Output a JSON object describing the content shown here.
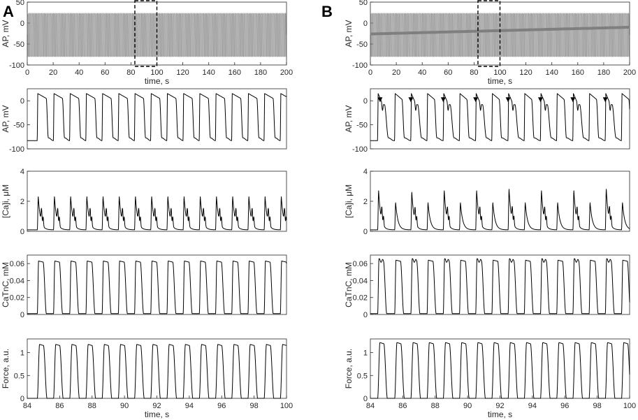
{
  "figure": {
    "panel_letters": [
      "A",
      "B"
    ]
  },
  "colors": {
    "axes": "#262626",
    "trace": "#000000",
    "overview_trace": "#7f7f7f",
    "background": "#ffffff"
  },
  "chart_data": [
    {
      "panel": "A",
      "row": "overview",
      "type": "line",
      "xlabel": "time, s",
      "ylabel": "AP, mV",
      "xlim": [
        0,
        200
      ],
      "ylim": [
        -100,
        50
      ],
      "xticks": [
        0,
        20,
        40,
        60,
        80,
        100,
        120,
        140,
        160,
        180,
        200
      ],
      "yticks": [
        -100,
        -50,
        0,
        50
      ],
      "series": [
        {
          "period_s": 1.0,
          "peak_mV": 24,
          "rest_mV": -80,
          "upstroke_start_mV": -28
        }
      ],
      "highlight_box": {
        "x": [
          83,
          100
        ],
        "y": [
          -100,
          50
        ]
      }
    },
    {
      "panel": "B",
      "row": "overview",
      "type": "line",
      "xlabel": "time, s",
      "ylabel": "AP, mV",
      "xlim": [
        0,
        200
      ],
      "ylim": [
        -100,
        50
      ],
      "xticks": [
        0,
        20,
        40,
        60,
        80,
        100,
        120,
        140,
        160,
        180,
        200
      ],
      "yticks": [
        -100,
        -50,
        0,
        50
      ],
      "series": [
        {
          "period_s": 1.0,
          "peak_mV": 24,
          "rest_mV": -80,
          "upstroke_start_mV": -28,
          "band_start_mV": -26,
          "band_end_mV": -10
        }
      ],
      "highlight_box": {
        "x": [
          83,
          100
        ],
        "y": [
          -100,
          50
        ]
      }
    },
    {
      "panel": "A",
      "row": "ap",
      "type": "line",
      "xlabel": "",
      "ylabel": "AP, mV",
      "xlim": [
        84,
        100
      ],
      "ylim": [
        -100,
        25
      ],
      "yticks": [
        -100,
        -50,
        0
      ],
      "series": [
        {
          "beat_starts": [
            84.62,
            85.62,
            86.62,
            87.62,
            88.62,
            89.62,
            90.62,
            91.62,
            92.62,
            93.62,
            94.62,
            95.62,
            96.62,
            97.62,
            98.62,
            99.62
          ],
          "peak": 15,
          "rest": -83,
          "eads": false
        }
      ]
    },
    {
      "panel": "B",
      "row": "ap",
      "type": "line",
      "xlabel": "",
      "ylabel": "AP, mV",
      "xlim": [
        84,
        100
      ],
      "ylim": [
        -100,
        25
      ],
      "yticks": [
        -100,
        -50,
        0
      ],
      "series": [
        {
          "beat_starts": [
            84.45,
            85.5,
            86.5,
            87.5,
            88.5,
            89.5,
            90.5,
            91.5,
            92.5,
            93.5,
            94.5,
            95.5,
            96.5,
            97.5,
            98.5,
            99.5
          ],
          "peak": 15,
          "rest": -83,
          "eads": true
        }
      ],
      "markers": [
        {
          "x": 84.6,
          "y": 0
        },
        {
          "x": 86.5,
          "y": 0
        },
        {
          "x": 88.5,
          "y": 0
        },
        {
          "x": 90.5,
          "y": 0
        },
        {
          "x": 92.5,
          "y": 0
        },
        {
          "x": 94.5,
          "y": 0
        },
        {
          "x": 96.5,
          "y": 0
        },
        {
          "x": 98.5,
          "y": 0
        }
      ]
    },
    {
      "panel": "A",
      "row": "ca",
      "type": "line",
      "xlabel": "",
      "ylabel": "[Ca]i, μM",
      "xlim": [
        84,
        100
      ],
      "ylim": [
        0,
        4
      ],
      "yticks": [
        0,
        2,
        4
      ],
      "series": [
        {
          "peaks": [
            2.3,
            2.3,
            2.3,
            2.3,
            2.3,
            2.3,
            2.3,
            2.3,
            2.3,
            2.3,
            2.3,
            2.3,
            2.3,
            2.3,
            2.3,
            2.3
          ],
          "baseline": 0.1
        }
      ]
    },
    {
      "panel": "B",
      "row": "ca",
      "type": "line",
      "xlabel": "",
      "ylabel": "[Ca]i, μM",
      "xlim": [
        84,
        100
      ],
      "ylim": [
        0,
        4
      ],
      "yticks": [
        0,
        2,
        4
      ],
      "series": [
        {
          "peaks": [
            2.7,
            1.9,
            2.6,
            1.9,
            2.7,
            1.9,
            2.7,
            1.9,
            2.8,
            1.9,
            2.7,
            1.9,
            2.7,
            1.9,
            2.8,
            1.9
          ],
          "baseline": 0.1
        }
      ]
    },
    {
      "panel": "A",
      "row": "catnc",
      "type": "line",
      "xlabel": "",
      "ylabel": "CaTnC, mM",
      "xlim": [
        84,
        100
      ],
      "ylim": [
        0,
        0.07
      ],
      "yticks": [
        0,
        0.02,
        0.04,
        0.06
      ],
      "series": [
        {
          "peak": 0.063,
          "baseline": 0.001
        }
      ]
    },
    {
      "panel": "B",
      "row": "catnc",
      "type": "line",
      "xlabel": "",
      "ylabel": "CaTnC, mM",
      "xlim": [
        84,
        100
      ],
      "ylim": [
        0,
        0.07
      ],
      "yticks": [
        0,
        0.02,
        0.04,
        0.06
      ],
      "series": [
        {
          "peak": 0.064,
          "baseline": 0.001
        }
      ]
    },
    {
      "panel": "A",
      "row": "force",
      "type": "line",
      "xlabel": "time, s",
      "ylabel": "Force, a.u.",
      "xlim": [
        84,
        100
      ],
      "ylim": [
        0,
        1.3
      ],
      "xticks": [
        84,
        86,
        88,
        90,
        92,
        94,
        96,
        98,
        100
      ],
      "yticks": [
        0,
        0.5,
        1
      ],
      "series": [
        {
          "peak": 1.18,
          "baseline": 0.0
        }
      ]
    },
    {
      "panel": "B",
      "row": "force",
      "type": "line",
      "xlabel": "time, s",
      "ylabel": "Force, a.u.",
      "xlim": [
        84,
        100
      ],
      "ylim": [
        0,
        1.3
      ],
      "xticks": [
        84,
        86,
        88,
        90,
        92,
        94,
        96,
        98,
        100
      ],
      "yticks": [
        0,
        0.5,
        1
      ],
      "series": [
        {
          "peak": 1.22,
          "baseline": 0.0
        }
      ]
    }
  ]
}
